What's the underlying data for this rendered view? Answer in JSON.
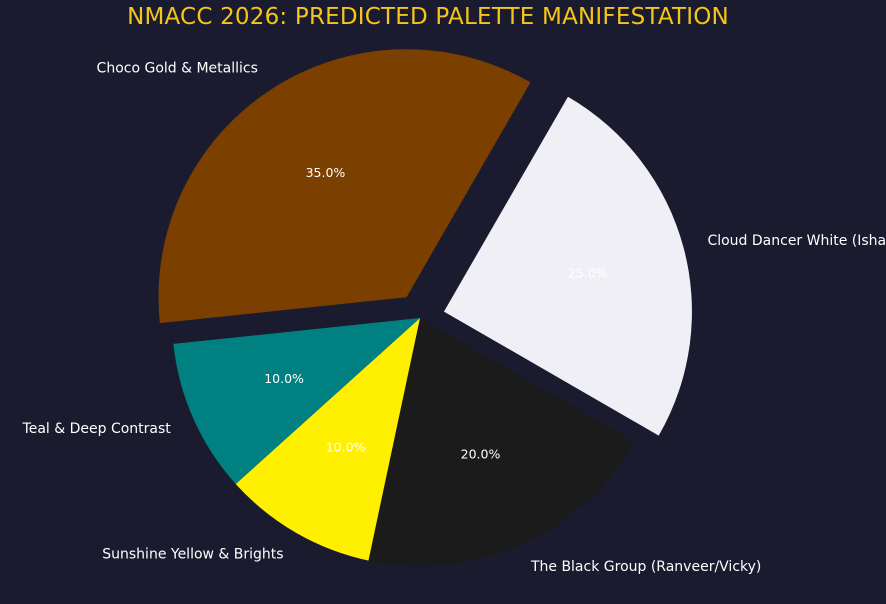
{
  "chart_data": {
    "type": "pie",
    "title": "NMACC 2026: PREDICTED PALETTE MANIFESTATION",
    "title_color": "#f5c518",
    "background": "#1a1b2e",
    "label_color": "#ffffff",
    "slices": [
      {
        "label": "Cloud Dancer White (Isha Ambani)",
        "value": 25.0,
        "pct_label": "25.0%",
        "color": "#f0eff5",
        "exploded": true
      },
      {
        "label": "The Black Group (Ranveer/Vicky)",
        "value": 20.0,
        "pct_label": "20.0%",
        "color": "#1b1b1b",
        "exploded": false
      },
      {
        "label": "Sunshine Yellow & Brights",
        "value": 10.0,
        "pct_label": "10.0%",
        "color": "#fff000",
        "exploded": false
      },
      {
        "label": "Teal & Deep Contrast",
        "value": 10.0,
        "pct_label": "10.0%",
        "color": "#008080",
        "exploded": false
      },
      {
        "label": "Choco Gold & Metallics",
        "value": 35.0,
        "pct_label": "35.0%",
        "color": "#7b3f00",
        "exploded": true
      }
    ]
  }
}
